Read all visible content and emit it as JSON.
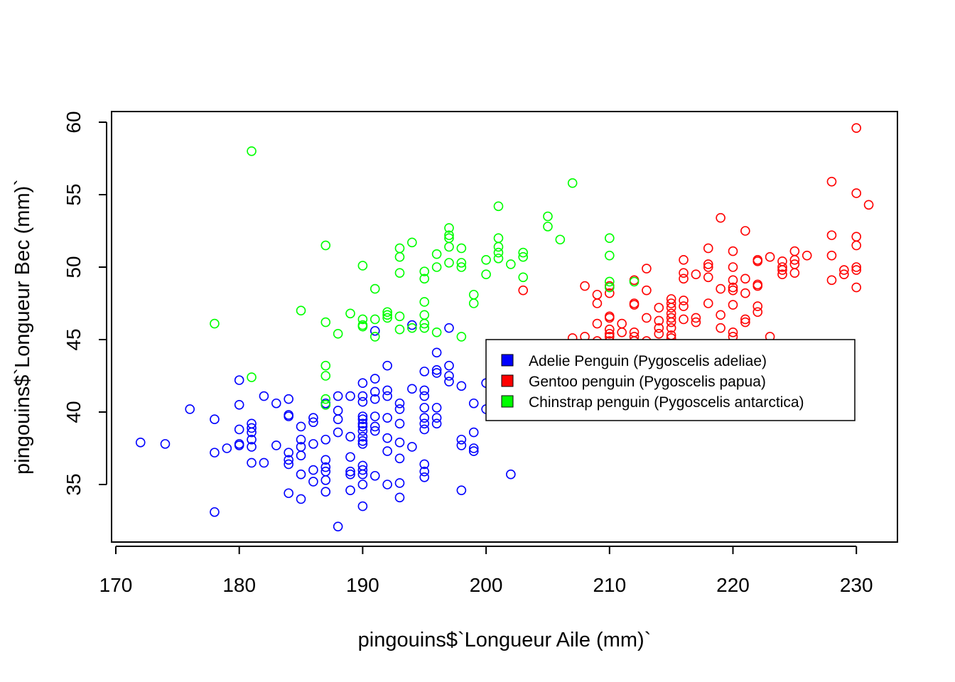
{
  "chart_data": {
    "type": "scatter",
    "title": "",
    "xlabel": "pingouins$`Longueur Aile (mm)`",
    "ylabel": "pingouins$`Longueur Bec (mm)`",
    "xlim": [
      170,
      232
    ],
    "ylim": [
      32,
      60
    ],
    "x_ticks": [
      170,
      180,
      190,
      200,
      210,
      220,
      230
    ],
    "y_ticks": [
      35,
      40,
      45,
      50,
      55,
      60
    ],
    "grid": false,
    "legend_position": "right",
    "series": [
      {
        "name": "Adelie Penguin (Pygoscelis adeliae)",
        "color": "#0000FF",
        "points": [
          [
            172,
            37.9
          ],
          [
            174,
            37.8
          ],
          [
            176,
            40.2
          ],
          [
            178,
            39.5
          ],
          [
            178,
            37.2
          ],
          [
            178,
            33.1
          ],
          [
            179,
            37.5
          ],
          [
            180,
            42.2
          ],
          [
            180,
            40.5
          ],
          [
            180,
            38.8
          ],
          [
            180,
            37.8
          ],
          [
            180,
            37.7
          ],
          [
            181,
            39.2
          ],
          [
            181,
            38.9
          ],
          [
            181,
            38.6
          ],
          [
            181,
            38.1
          ],
          [
            181,
            37.6
          ],
          [
            181,
            36.5
          ],
          [
            182,
            41.1
          ],
          [
            182,
            36.5
          ],
          [
            183,
            40.6
          ],
          [
            183,
            37.7
          ],
          [
            184,
            40.9
          ],
          [
            184,
            39.8
          ],
          [
            184,
            39.7
          ],
          [
            184,
            37.2
          ],
          [
            184,
            36.7
          ],
          [
            184,
            36.4
          ],
          [
            184,
            34.4
          ],
          [
            185,
            39.0
          ],
          [
            185,
            38.1
          ],
          [
            185,
            37.6
          ],
          [
            185,
            37.0
          ],
          [
            185,
            35.7
          ],
          [
            185,
            34.0
          ],
          [
            186,
            39.6
          ],
          [
            186,
            39.3
          ],
          [
            186,
            37.8
          ],
          [
            186,
            36.0
          ],
          [
            186,
            35.2
          ],
          [
            187,
            40.6
          ],
          [
            187,
            40.5
          ],
          [
            187,
            38.1
          ],
          [
            187,
            36.7
          ],
          [
            187,
            36.2
          ],
          [
            187,
            35.9
          ],
          [
            187,
            35.3
          ],
          [
            187,
            34.5
          ],
          [
            188,
            41.1
          ],
          [
            188,
            40.1
          ],
          [
            188,
            39.5
          ],
          [
            188,
            38.6
          ],
          [
            188,
            32.1
          ],
          [
            189,
            41.1
          ],
          [
            189,
            38.3
          ],
          [
            189,
            36.9
          ],
          [
            189,
            35.9
          ],
          [
            189,
            35.7
          ],
          [
            189,
            34.6
          ],
          [
            190,
            42.0
          ],
          [
            190,
            41.1
          ],
          [
            190,
            40.7
          ],
          [
            190,
            39.7
          ],
          [
            190,
            39.5
          ],
          [
            190,
            39.2
          ],
          [
            190,
            39.0
          ],
          [
            190,
            38.7
          ],
          [
            190,
            38.3
          ],
          [
            190,
            38.0
          ],
          [
            190,
            37.8
          ],
          [
            190,
            36.3
          ],
          [
            190,
            36.0
          ],
          [
            190,
            35.7
          ],
          [
            190,
            35.0
          ],
          [
            190,
            33.5
          ],
          [
            191,
            45.6
          ],
          [
            191,
            42.3
          ],
          [
            191,
            41.4
          ],
          [
            191,
            40.9
          ],
          [
            191,
            39.7
          ],
          [
            191,
            39.0
          ],
          [
            191,
            38.7
          ],
          [
            191,
            35.6
          ],
          [
            192,
            43.2
          ],
          [
            192,
            41.5
          ],
          [
            192,
            41.1
          ],
          [
            192,
            39.6
          ],
          [
            192,
            38.2
          ],
          [
            192,
            37.3
          ],
          [
            192,
            35.0
          ],
          [
            193,
            40.6
          ],
          [
            193,
            40.2
          ],
          [
            193,
            39.2
          ],
          [
            193,
            37.9
          ],
          [
            193,
            36.8
          ],
          [
            193,
            35.1
          ],
          [
            193,
            34.1
          ],
          [
            194,
            46.0
          ],
          [
            194,
            41.6
          ],
          [
            194,
            37.6
          ],
          [
            195,
            42.8
          ],
          [
            195,
            41.5
          ],
          [
            195,
            41.1
          ],
          [
            195,
            40.3
          ],
          [
            195,
            39.6
          ],
          [
            195,
            39.2
          ],
          [
            195,
            38.8
          ],
          [
            195,
            36.4
          ],
          [
            195,
            35.9
          ],
          [
            195,
            35.5
          ],
          [
            196,
            44.1
          ],
          [
            196,
            42.9
          ],
          [
            196,
            42.7
          ],
          [
            196,
            40.3
          ],
          [
            196,
            39.6
          ],
          [
            196,
            39.2
          ],
          [
            197,
            45.8
          ],
          [
            197,
            43.2
          ],
          [
            197,
            42.5
          ],
          [
            197,
            42.1
          ],
          [
            198,
            41.8
          ],
          [
            198,
            38.1
          ],
          [
            198,
            37.7
          ],
          [
            198,
            34.6
          ],
          [
            199,
            40.6
          ],
          [
            199,
            38.6
          ],
          [
            199,
            37.5
          ],
          [
            199,
            37.3
          ],
          [
            200,
            42.0
          ],
          [
            200,
            40.2
          ],
          [
            201,
            41.0
          ],
          [
            202,
            35.7
          ]
        ]
      },
      {
        "name": "Gentoo penguin (Pygoscelis papua)",
        "color": "#FF0000",
        "points": [
          [
            203,
            48.4
          ],
          [
            207,
            45.1
          ],
          [
            208,
            48.7
          ],
          [
            208,
            45.2
          ],
          [
            209,
            48.1
          ],
          [
            209,
            47.5
          ],
          [
            209,
            46.1
          ],
          [
            209,
            44.9
          ],
          [
            210,
            48.7
          ],
          [
            210,
            48.2
          ],
          [
            210,
            46.6
          ],
          [
            210,
            46.5
          ],
          [
            210,
            45.7
          ],
          [
            210,
            45.4
          ],
          [
            210,
            45.2
          ],
          [
            210,
            44.9
          ],
          [
            210,
            43.8
          ],
          [
            211,
            46.1
          ],
          [
            211,
            45.5
          ],
          [
            211,
            44.7
          ],
          [
            212,
            49.1
          ],
          [
            212,
            47.5
          ],
          [
            212,
            47.4
          ],
          [
            212,
            45.5
          ],
          [
            212,
            45.2
          ],
          [
            212,
            44.9
          ],
          [
            213,
            49.9
          ],
          [
            213,
            48.4
          ],
          [
            213,
            46.5
          ],
          [
            213,
            44.9
          ],
          [
            214,
            47.2
          ],
          [
            214,
            46.3
          ],
          [
            214,
            45.8
          ],
          [
            214,
            45.4
          ],
          [
            215,
            47.8
          ],
          [
            215,
            47.5
          ],
          [
            215,
            47.2
          ],
          [
            215,
            46.8
          ],
          [
            215,
            46.5
          ],
          [
            215,
            46.2
          ],
          [
            215,
            45.8
          ],
          [
            215,
            45.3
          ],
          [
            215,
            45.1
          ],
          [
            216,
            50.5
          ],
          [
            216,
            49.6
          ],
          [
            216,
            49.2
          ],
          [
            216,
            47.7
          ],
          [
            216,
            47.3
          ],
          [
            216,
            46.4
          ],
          [
            217,
            49.5
          ],
          [
            217,
            46.5
          ],
          [
            217,
            46.2
          ],
          [
            218,
            49.3
          ],
          [
            218,
            51.3
          ],
          [
            218,
            50.2
          ],
          [
            218,
            50.0
          ],
          [
            218,
            47.5
          ],
          [
            219,
            53.4
          ],
          [
            219,
            48.5
          ],
          [
            219,
            46.7
          ],
          [
            219,
            45.8
          ],
          [
            220,
            51.1
          ],
          [
            220,
            50.0
          ],
          [
            220,
            49.1
          ],
          [
            220,
            48.6
          ],
          [
            220,
            48.4
          ],
          [
            220,
            47.4
          ],
          [
            220,
            45.5
          ],
          [
            220,
            45.2
          ],
          [
            221,
            52.5
          ],
          [
            221,
            49.2
          ],
          [
            221,
            48.2
          ],
          [
            221,
            46.4
          ],
          [
            221,
            46.2
          ],
          [
            222,
            50.5
          ],
          [
            222,
            50.4
          ],
          [
            222,
            48.8
          ],
          [
            222,
            48.7
          ],
          [
            222,
            47.3
          ],
          [
            222,
            46.9
          ],
          [
            223,
            50.7
          ],
          [
            223,
            45.2
          ],
          [
            224,
            50.4
          ],
          [
            224,
            50.0
          ],
          [
            224,
            49.8
          ],
          [
            224,
            49.5
          ],
          [
            225,
            51.1
          ],
          [
            225,
            50.5
          ],
          [
            225,
            50.2
          ],
          [
            225,
            49.6
          ],
          [
            226,
            50.8
          ],
          [
            228,
            55.9
          ],
          [
            228,
            52.2
          ],
          [
            228,
            50.8
          ],
          [
            228,
            49.1
          ],
          [
            229,
            49.8
          ],
          [
            229,
            49.5
          ],
          [
            230,
            59.6
          ],
          [
            230,
            55.1
          ],
          [
            230,
            52.1
          ],
          [
            230,
            51.5
          ],
          [
            230,
            50.0
          ],
          [
            230,
            49.8
          ],
          [
            230,
            48.6
          ],
          [
            231,
            54.3
          ]
        ]
      },
      {
        "name": "Chinstrap penguin (Pygoscelis antarctica)",
        "color": "#00FF00",
        "points": [
          [
            178,
            46.1
          ],
          [
            181,
            58.0
          ],
          [
            181,
            42.4
          ],
          [
            185,
            47.0
          ],
          [
            187,
            51.5
          ],
          [
            187,
            46.2
          ],
          [
            187,
            43.2
          ],
          [
            187,
            42.5
          ],
          [
            187,
            40.9
          ],
          [
            187,
            40.5
          ],
          [
            188,
            45.4
          ],
          [
            189,
            46.8
          ],
          [
            190,
            50.1
          ],
          [
            190,
            46.4
          ],
          [
            190,
            46.0
          ],
          [
            190,
            45.9
          ],
          [
            191,
            48.5
          ],
          [
            191,
            46.4
          ],
          [
            191,
            45.2
          ],
          [
            192,
            46.9
          ],
          [
            192,
            46.7
          ],
          [
            192,
            46.5
          ],
          [
            193,
            51.3
          ],
          [
            193,
            50.7
          ],
          [
            193,
            49.6
          ],
          [
            193,
            46.6
          ],
          [
            193,
            45.7
          ],
          [
            194,
            51.7
          ],
          [
            194,
            45.8
          ],
          [
            195,
            49.7
          ],
          [
            195,
            49.2
          ],
          [
            195,
            47.6
          ],
          [
            195,
            46.7
          ],
          [
            195,
            46.1
          ],
          [
            195,
            45.8
          ],
          [
            196,
            50.9
          ],
          [
            196,
            50.0
          ],
          [
            196,
            45.5
          ],
          [
            197,
            52.7
          ],
          [
            197,
            52.2
          ],
          [
            197,
            52.0
          ],
          [
            197,
            51.4
          ],
          [
            197,
            50.3
          ],
          [
            198,
            51.3
          ],
          [
            198,
            50.3
          ],
          [
            198,
            50.0
          ],
          [
            198,
            45.2
          ],
          [
            199,
            48.1
          ],
          [
            199,
            47.5
          ],
          [
            200,
            50.5
          ],
          [
            200,
            49.5
          ],
          [
            201,
            54.2
          ],
          [
            201,
            52.0
          ],
          [
            201,
            51.4
          ],
          [
            201,
            51.0
          ],
          [
            201,
            50.6
          ],
          [
            202,
            50.2
          ],
          [
            203,
            51.0
          ],
          [
            203,
            50.7
          ],
          [
            203,
            49.3
          ],
          [
            205,
            53.5
          ],
          [
            205,
            52.8
          ],
          [
            206,
            51.9
          ],
          [
            207,
            55.8
          ],
          [
            210,
            52.0
          ],
          [
            210,
            50.8
          ],
          [
            210,
            49.0
          ],
          [
            210,
            48.6
          ],
          [
            212,
            49.0
          ]
        ]
      }
    ]
  }
}
